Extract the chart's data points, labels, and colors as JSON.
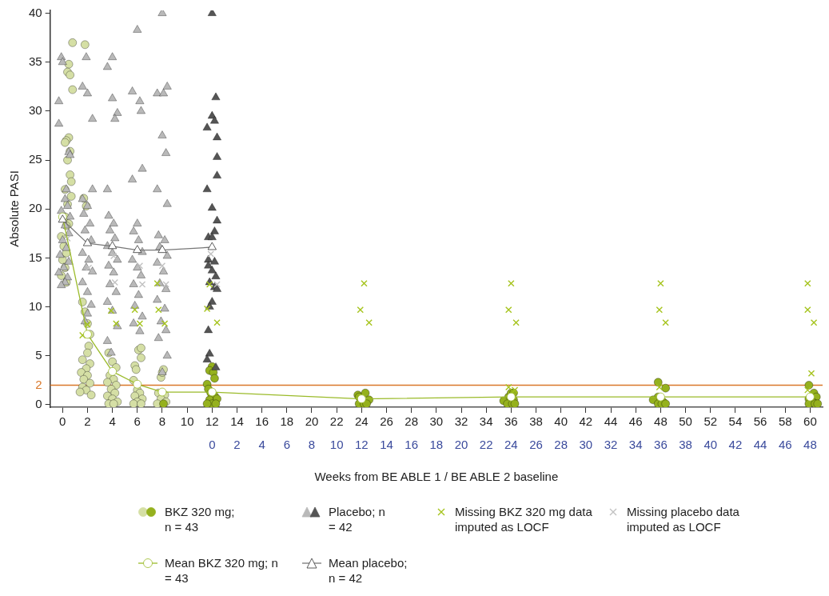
{
  "chart_data": {
    "type": "scatter",
    "ylabel": "Absolute PASI",
    "xlabel": "Weeks from BE ABLE 1 / BE ABLE 2 baseline",
    "xlim": [
      -1,
      61
    ],
    "xticks": [
      0,
      2,
      4,
      6,
      8,
      10,
      12,
      14,
      16,
      18,
      20,
      22,
      24,
      26,
      28,
      30,
      32,
      34,
      36,
      38,
      40,
      42,
      44,
      46,
      48,
      50,
      52,
      54,
      56,
      58,
      60
    ],
    "x2lim": [
      -13,
      49
    ],
    "x2ticks": [
      0,
      2,
      4,
      6,
      8,
      10,
      12,
      14,
      16,
      18,
      20,
      22,
      24,
      26,
      28,
      30,
      32,
      34,
      36,
      38,
      40,
      42,
      44,
      46,
      48
    ],
    "ylim": [
      -0.25,
      40.3
    ],
    "yticks": [
      0,
      5,
      10,
      15,
      20,
      25,
      30,
      35,
      40
    ],
    "ref_lines": [
      {
        "axis": "y",
        "value": 2,
        "label": "2",
        "color": "#d9782a"
      }
    ],
    "legend": "bottom",
    "series": [
      {
        "name": "BKZ 320 mg; n = 43",
        "marker": "circle",
        "color": "#95b11e",
        "x": [
          0.8,
          0.5,
          0.4,
          0.6,
          0.8,
          0.5,
          0.3,
          0.2,
          0.6,
          0.4,
          0.6,
          0.7,
          0.2,
          0.7,
          0.4,
          0.2,
          0.5,
          0.3,
          -0.1,
          0.1,
          0.3,
          0.0,
          0.2,
          -0.1,
          0.3,
          1.8,
          1.7,
          1.9,
          1.6,
          1.8,
          2.0,
          2.2,
          2.1,
          2.0,
          1.6,
          2.2,
          1.9,
          1.5,
          2.0,
          1.7,
          2.2,
          1.6,
          1.9,
          1.4,
          2.3,
          3.7,
          4.0,
          4.3,
          3.8,
          4.1,
          3.6,
          4.3,
          3.9,
          4.2,
          3.6,
          4.0,
          4.4,
          3.7,
          4.1,
          6.1,
          6.3,
          5.8,
          5.9,
          6.3,
          5.7,
          6.0,
          6.2,
          5.8,
          6.4,
          6.0,
          5.7,
          6.3,
          7.9,
          8.0,
          8.1,
          7.7,
          8.2,
          7.9,
          8.3,
          7.6,
          8.1,
          12.0,
          11.8,
          12.1,
          12.2,
          11.6,
          11.7,
          11.9,
          12.2,
          11.8,
          12.4,
          12.0,
          12.3,
          11.6,
          23.7,
          23.8,
          24.3,
          24.6,
          23.8,
          24.2,
          24.4,
          35.8,
          36.0,
          36.2,
          35.4,
          36.2,
          35.7,
          36.1,
          36.3,
          47.8,
          48.4,
          47.8,
          47.4,
          48.2,
          47.8,
          48.1,
          48.4,
          59.9,
          60.3,
          60.5,
          59.9,
          60.2,
          59.9,
          60.4,
          60.6
        ],
        "values": [
          37,
          34.8,
          34,
          33.7,
          32.2,
          27.3,
          27,
          26.8,
          25.9,
          25,
          23.5,
          22.8,
          22,
          21.3,
          20.5,
          19.2,
          18.5,
          18.3,
          17.2,
          16.2,
          15.5,
          14.8,
          14,
          13.2,
          12.5,
          36.8,
          21.1,
          20.3,
          10.5,
          9.5,
          8.3,
          7.2,
          6,
          5.3,
          4.6,
          4.2,
          3.7,
          3.3,
          3,
          2.6,
          2.2,
          1.8,
          1.5,
          1.3,
          1,
          5.3,
          4.4,
          3.8,
          3,
          2.6,
          2.3,
          2,
          1.6,
          1.2,
          0.9,
          0.6,
          0.3,
          0.1,
          0.1,
          5.6,
          5.8,
          4,
          3.6,
          4.8,
          2.5,
          1.5,
          1.2,
          0.9,
          0.6,
          0.3,
          0.1,
          0.1,
          2.8,
          3.3,
          3.6,
          1.2,
          1,
          0.6,
          0.3,
          0.1,
          0.1,
          3.9,
          3.5,
          3.3,
          2.7,
          2.1,
          1.6,
          1.2,
          0.9,
          0.5,
          0.6,
          0.1,
          0.1,
          0.1,
          1.0,
          0.8,
          1.2,
          0.5,
          0.1,
          0.1,
          0.1,
          0.8,
          1.2,
          1.2,
          0.4,
          0.5,
          0.1,
          0.1,
          0.1,
          2.3,
          1.7,
          0.8,
          0.5,
          0.3,
          0.1,
          0.1,
          0.1,
          2.0,
          1.2,
          0.8,
          0.6,
          0.3,
          0.1,
          0.1,
          0.1
        ],
        "colors": [
          "#d5dfa5",
          "#d5dfa5",
          "#d5dfa5",
          "#d5dfa5",
          "#d5dfa5",
          "#d5dfa5",
          "#d5dfa5",
          "#d5dfa5",
          "#d5dfa5",
          "#d5dfa5",
          "#d5dfa5",
          "#d5dfa5",
          "#d5dfa5",
          "#d5dfa5",
          "#d5dfa5",
          "#d5dfa5",
          "#d5dfa5",
          "#d5dfa5",
          "#d5dfa5",
          "#d5dfa5",
          "#d5dfa5",
          "#d5dfa5",
          "#d5dfa5",
          "#d5dfa5",
          "#d5dfa5",
          "#d5dfa5",
          "#d5dfa5",
          "#d5dfa5",
          "#d5dfa5",
          "#d5dfa5",
          "#d5dfa5",
          "#d5dfa5",
          "#d5dfa5",
          "#d5dfa5",
          "#d5dfa5",
          "#d5dfa5",
          "#d5dfa5",
          "#d5dfa5",
          "#d5dfa5",
          "#d5dfa5",
          "#d5dfa5",
          "#d5dfa5",
          "#d5dfa5",
          "#d5dfa5",
          "#d5dfa5",
          "#d5dfa5",
          "#d5dfa5",
          "#d5dfa5",
          "#d5dfa5",
          "#d5dfa5",
          "#d5dfa5",
          "#d5dfa5",
          "#d5dfa5",
          "#d5dfa5",
          "#d5dfa5",
          "#d5dfa5",
          "#d5dfa5",
          "#d5dfa5",
          "#d5dfa5",
          "#d5dfa5",
          "#d5dfa5",
          "#d5dfa5",
          "#d5dfa5",
          "#d5dfa5",
          "#d5dfa5",
          "#d5dfa5",
          "#d5dfa5",
          "#d5dfa5",
          "#d5dfa5",
          "#d5dfa5",
          "#d5dfa5",
          "#d5dfa5",
          "#d5dfa5",
          "#d5dfa5",
          "#d5dfa5",
          "#d5dfa5",
          "#d5dfa5",
          "#d5dfa5",
          "#d5dfa5",
          "#d5dfa5",
          "#95b11e",
          "#95b11e",
          "#95b11e",
          "#95b11e",
          "#95b11e",
          "#95b11e",
          "#95b11e",
          "#95b11e",
          "#95b11e",
          "#95b11e",
          "#95b11e",
          "#95b11e",
          "#95b11e",
          "#95b11e",
          "#95b11e",
          "#95b11e",
          "#95b11e",
          "#95b11e",
          "#95b11e",
          "#95b11e",
          "#95b11e",
          "#95b11e",
          "#95b11e",
          "#95b11e",
          "#95b11e",
          "#95b11e",
          "#95b11e",
          "#95b11e",
          "#95b11e",
          "#95b11e",
          "#95b11e",
          "#95b11e",
          "#95b11e",
          "#95b11e",
          "#95b11e",
          "#95b11e",
          "#95b11e",
          "#95b11e",
          "#95b11e",
          "#95b11e",
          "#95b11e",
          "#95b11e",
          "#95b11e",
          "#95b11e",
          "#95b11e"
        ]
      },
      {
        "name": "Placebo; n = 42",
        "marker": "triangle",
        "color": "#555555",
        "x": [
          -0.3,
          -0.1,
          0.0,
          -0.3,
          0.5,
          0.6,
          0.3,
          0.2,
          0.4,
          -0.1,
          0.6,
          0.2,
          0.5,
          0.0,
          0.3,
          -0.2,
          0.5,
          0.1,
          -0.3,
          0.4,
          0.2,
          -0.1,
          1.6,
          2.0,
          1.9,
          2.4,
          2.4,
          1.6,
          2.0,
          1.7,
          2.2,
          1.8,
          2.3,
          1.6,
          2.1,
          1.9,
          2.4,
          1.6,
          2.0,
          2.3,
          2.0,
          1.8,
          3.6,
          4.0,
          4.0,
          4.4,
          4.2,
          3.6,
          3.7,
          4.1,
          3.8,
          4.2,
          3.6,
          4.0,
          4.4,
          3.7,
          4.1,
          3.8,
          4.3,
          3.6,
          4.0,
          4.4,
          3.6,
          3.9,
          6.0,
          5.6,
          6.2,
          6.3,
          6.4,
          5.6,
          6.0,
          5.7,
          6.1,
          6.4,
          5.6,
          6.0,
          6.3,
          5.7,
          6.1,
          5.8,
          6.4,
          5.7,
          6.2,
          8.0,
          7.6,
          8.1,
          8.4,
          8.0,
          8.3,
          7.6,
          8.4,
          7.7,
          8.2,
          7.8,
          8.4,
          7.6,
          8.1,
          7.8,
          8.3,
          7.6,
          8.2,
          7.9,
          8.3,
          7.7,
          8.4,
          8.0,
          12.0,
          12.3,
          12.0,
          12.2,
          11.6,
          12.4,
          12.4,
          12.4,
          11.6,
          12.0,
          12.4,
          12.2,
          11.7,
          12.0,
          11.7,
          12.2,
          11.7,
          12.0,
          12.3,
          11.8,
          12.2,
          12.4,
          12.0,
          11.8,
          11.7,
          11.8,
          11.6,
          12.3
        ],
        "values": [
          31,
          35.5,
          35,
          28.7,
          25.8,
          25.5,
          22,
          21,
          20.3,
          19.8,
          19.2,
          18.3,
          17.5,
          16.8,
          16,
          15.3,
          14.6,
          14,
          13.5,
          13,
          12.5,
          12.2,
          32.5,
          31.8,
          35.5,
          29.2,
          22,
          21,
          20.3,
          19.5,
          18.5,
          17.8,
          16.8,
          15.5,
          14.8,
          14,
          13.6,
          12.5,
          11.5,
          10.2,
          9.3,
          8.5,
          34.5,
          35.5,
          31.3,
          29.8,
          29.2,
          22,
          19.3,
          18.5,
          17.8,
          17,
          16.2,
          15.5,
          14.8,
          14.2,
          13.5,
          12.3,
          11.5,
          10.5,
          9.6,
          8,
          6.5,
          5.3,
          38.3,
          32,
          31,
          30,
          24.1,
          23,
          18.5,
          17.7,
          16.8,
          15.6,
          14.8,
          14,
          13.2,
          12.3,
          11.2,
          10.1,
          9,
          8.3,
          7.5,
          40,
          31.8,
          31.8,
          32.5,
          27.5,
          25.7,
          22,
          20.5,
          17.3,
          16.8,
          16.1,
          15.2,
          14.5,
          13.6,
          12.4,
          11.8,
          10.7,
          9.8,
          8.5,
          7.6,
          6.8,
          5,
          3.3,
          40,
          31.4,
          29.5,
          29,
          28.3,
          27.3,
          25.3,
          23.4,
          22,
          20.1,
          18.8,
          17.7,
          17.1,
          17.1,
          14.8,
          14.6,
          14.2,
          13.7,
          13.1,
          12.5,
          12,
          11.8,
          10.5,
          10,
          7.6,
          5.2,
          4.6,
          3.8
        ],
        "colors": [
          "#b9b9b9",
          "#b9b9b9",
          "#b9b9b9",
          "#b9b9b9",
          "#b9b9b9",
          "#b9b9b9",
          "#b9b9b9",
          "#b9b9b9",
          "#b9b9b9",
          "#b9b9b9",
          "#b9b9b9",
          "#b9b9b9",
          "#b9b9b9",
          "#b9b9b9",
          "#b9b9b9",
          "#b9b9b9",
          "#b9b9b9",
          "#b9b9b9",
          "#b9b9b9",
          "#b9b9b9",
          "#b9b9b9",
          "#b9b9b9",
          "#b9b9b9",
          "#b9b9b9",
          "#b9b9b9",
          "#b9b9b9",
          "#b9b9b9",
          "#b9b9b9",
          "#b9b9b9",
          "#b9b9b9",
          "#b9b9b9",
          "#b9b9b9",
          "#b9b9b9",
          "#b9b9b9",
          "#b9b9b9",
          "#b9b9b9",
          "#b9b9b9",
          "#b9b9b9",
          "#b9b9b9",
          "#b9b9b9",
          "#b9b9b9",
          "#b9b9b9",
          "#b9b9b9",
          "#b9b9b9",
          "#b9b9b9",
          "#b9b9b9",
          "#b9b9b9",
          "#b9b9b9",
          "#b9b9b9",
          "#b9b9b9",
          "#b9b9b9",
          "#b9b9b9",
          "#b9b9b9",
          "#b9b9b9",
          "#b9b9b9",
          "#b9b9b9",
          "#b9b9b9",
          "#b9b9b9",
          "#b9b9b9",
          "#b9b9b9",
          "#b9b9b9",
          "#b9b9b9",
          "#b9b9b9",
          "#b9b9b9",
          "#b9b9b9",
          "#b9b9b9",
          "#b9b9b9",
          "#b9b9b9",
          "#b9b9b9",
          "#b9b9b9",
          "#b9b9b9",
          "#b9b9b9",
          "#b9b9b9",
          "#b9b9b9",
          "#b9b9b9",
          "#b9b9b9",
          "#b9b9b9",
          "#b9b9b9",
          "#b9b9b9",
          "#b9b9b9",
          "#b9b9b9",
          "#b9b9b9",
          "#b9b9b9",
          "#b9b9b9",
          "#b9b9b9",
          "#b9b9b9",
          "#b9b9b9",
          "#b9b9b9",
          "#b9b9b9",
          "#b9b9b9",
          "#b9b9b9",
          "#b9b9b9",
          "#b9b9b9",
          "#b9b9b9",
          "#b9b9b9",
          "#b9b9b9",
          "#b9b9b9",
          "#b9b9b9",
          "#b9b9b9",
          "#b9b9b9",
          "#b9b9b9",
          "#b9b9b9",
          "#b9b9b9",
          "#b9b9b9",
          "#b9b9b9",
          "#b9b9b9",
          "#555555",
          "#555555",
          "#555555",
          "#555555",
          "#555555",
          "#555555",
          "#555555",
          "#555555",
          "#555555",
          "#555555",
          "#555555",
          "#555555",
          "#555555",
          "#555555",
          "#555555",
          "#555555",
          "#555555",
          "#555555",
          "#555555",
          "#555555",
          "#555555",
          "#555555",
          "#555555",
          "#555555",
          "#555555",
          "#555555",
          "#555555",
          "#555555"
        ]
      },
      {
        "name": "Missing BKZ 320 mg data imputed as LOCF",
        "marker": "cross",
        "color": "#a6c41e",
        "x": [
          1.6,
          2.0,
          3.9,
          4.3,
          5.8,
          6.2,
          7.7,
          8.2,
          7.6,
          11.8,
          11.6,
          12.4,
          23.9,
          24.2,
          24.6,
          35.8,
          36.0,
          36.4,
          35.8,
          36.3,
          47.9,
          48.0,
          48.4,
          47.9,
          59.8,
          59.8,
          60.3,
          60.1,
          59.8
        ],
        "values": [
          7.1,
          8.2,
          9.6,
          8.3,
          9.7,
          8.3,
          9.7,
          8.3,
          12.4,
          12.3,
          9.8,
          8.4,
          9.7,
          12.4,
          8.4,
          9.7,
          12.4,
          8.4,
          1.8,
          1.5,
          9.7,
          12.4,
          8.4,
          1.8,
          9.7,
          12.4,
          8.4,
          3.2,
          1.5
        ]
      },
      {
        "name": "Missing placebo data imputed as LOCF",
        "marker": "cross",
        "color": "#c2c2c2",
        "x": [
          0.4,
          2.1,
          4.1,
          6.2,
          6.4,
          8.0,
          8.3,
          11.9,
          12.4,
          4.2
        ],
        "values": [
          17,
          14,
          15.2,
          14.2,
          12.3,
          14.2,
          12.3,
          15.4,
          12.3,
          12.5
        ]
      },
      {
        "name": "Mean BKZ 320 mg; n = 43",
        "type": "line",
        "marker": "circle",
        "color": "#9bbb2a",
        "x": [
          0,
          2,
          4,
          6,
          8,
          12,
          24,
          36,
          48,
          60
        ],
        "values": [
          19.2,
          7.2,
          3.4,
          2.1,
          1.3,
          1.3,
          0.6,
          0.8,
          0.8,
          0.8
        ]
      },
      {
        "name": "Mean placebo; n = 42",
        "type": "line",
        "marker": "triangle",
        "color": "#777777",
        "x": [
          0,
          2,
          4,
          6,
          8,
          12
        ],
        "values": [
          18.9,
          16.5,
          16.2,
          15.8,
          15.8,
          16.1
        ]
      }
    ]
  }
}
